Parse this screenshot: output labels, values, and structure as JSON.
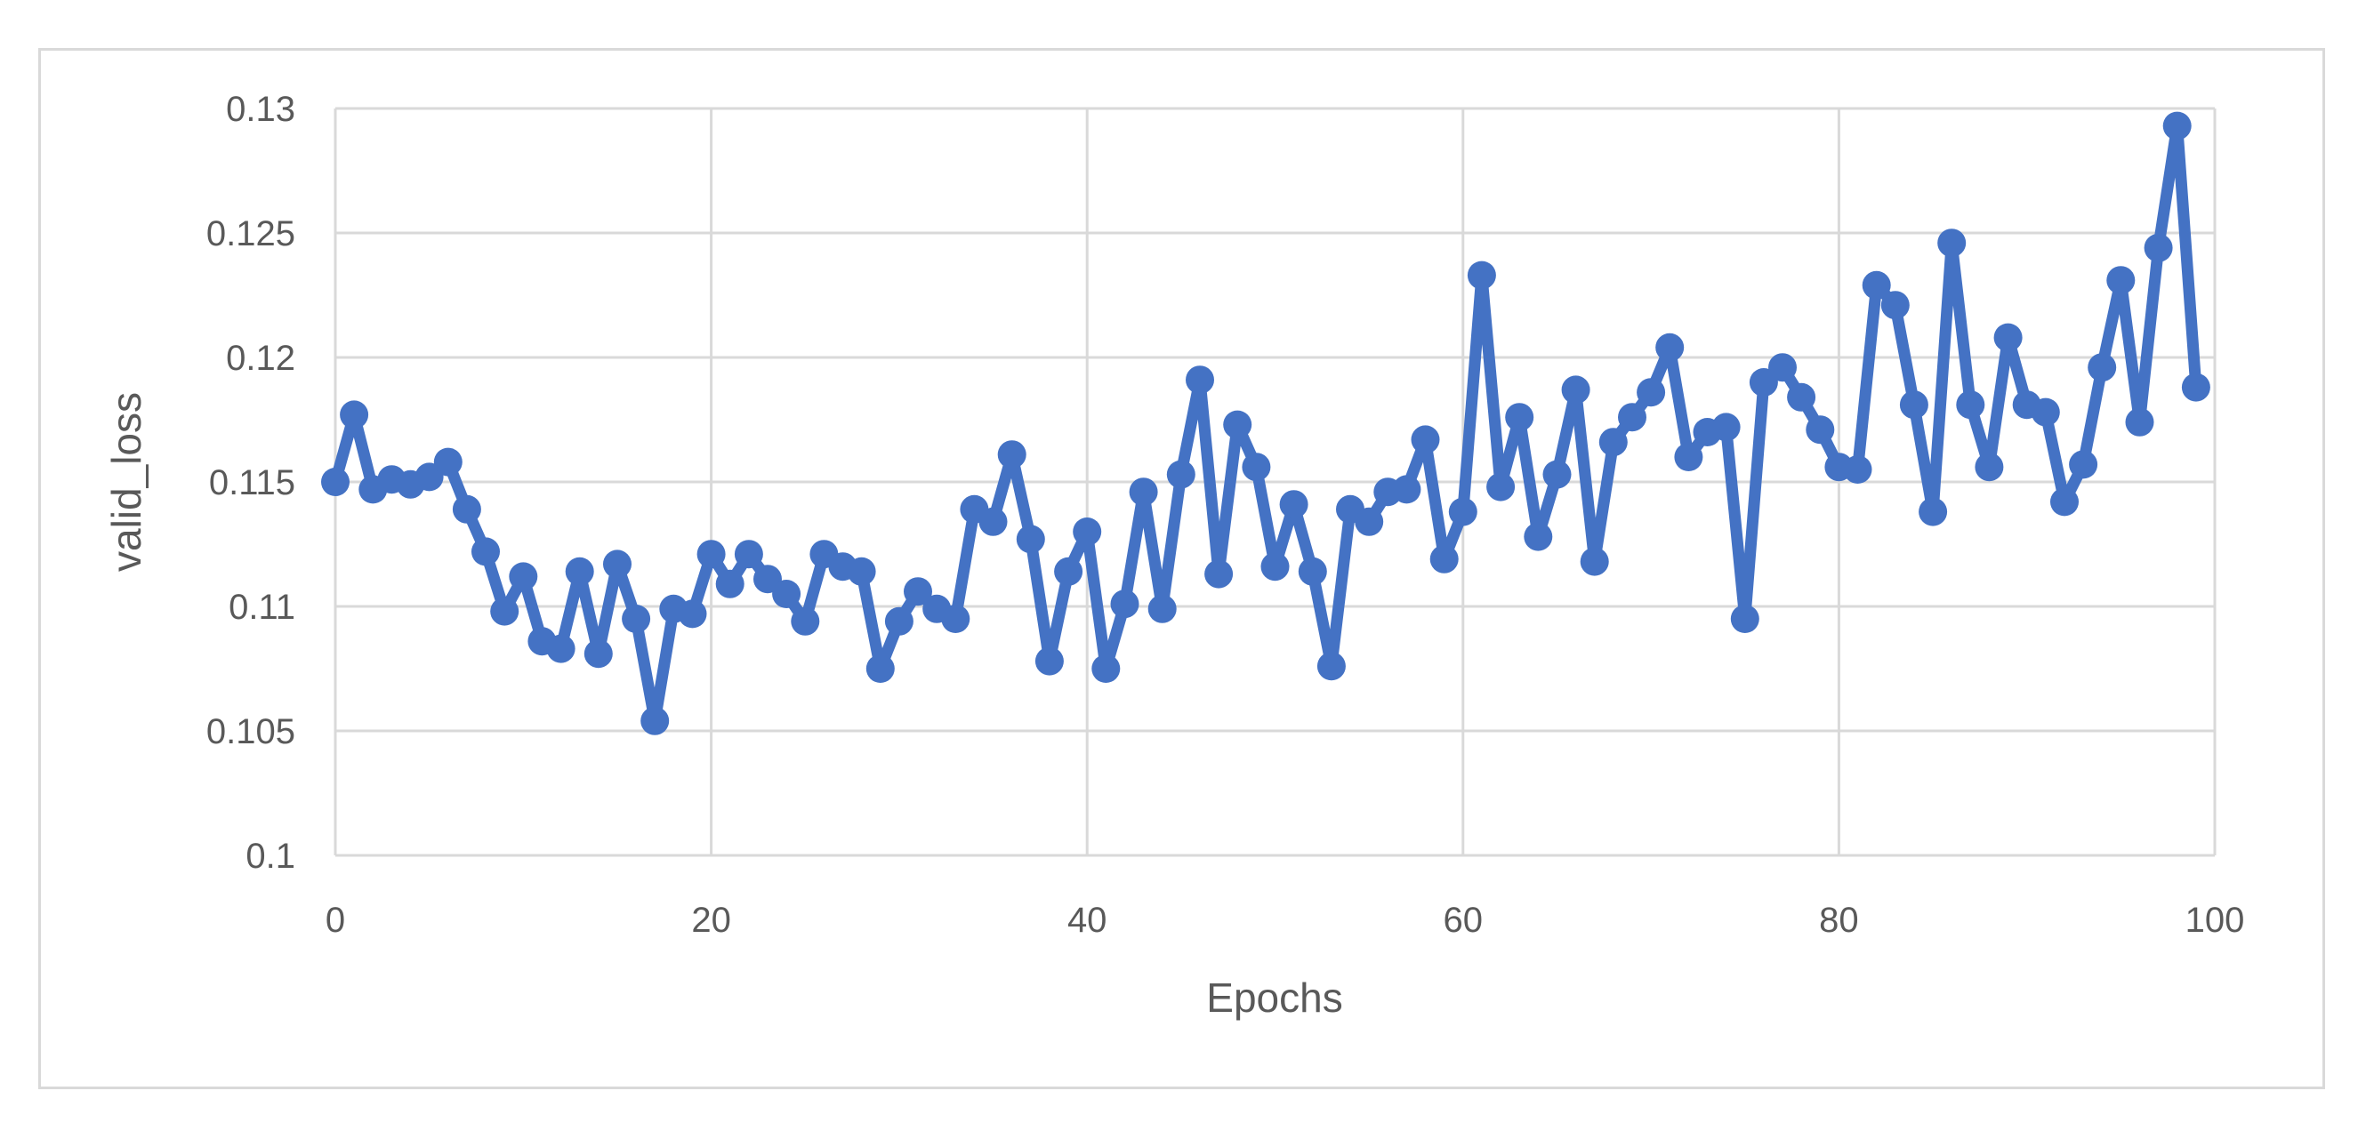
{
  "chart_data": {
    "type": "line",
    "title": "",
    "xlabel": "Epochs",
    "ylabel": "valid_loss",
    "legend": "none",
    "grid": true,
    "xlim": [
      0,
      100
    ],
    "ylim": [
      0.1,
      0.13
    ],
    "x_ticks": [
      0,
      20,
      40,
      60,
      80,
      100
    ],
    "x_tick_labels": [
      "0",
      "20",
      "40",
      "60",
      "80",
      "100"
    ],
    "y_ticks": [
      0.1,
      0.105,
      0.11,
      0.115,
      0.12,
      0.125,
      0.13
    ],
    "y_tick_labels": [
      "0.1",
      "0.105",
      "0.11",
      "0.115",
      "0.12",
      "0.125",
      "0.13"
    ],
    "x": [
      0,
      1,
      2,
      3,
      4,
      5,
      6,
      7,
      8,
      9,
      10,
      11,
      12,
      13,
      14,
      15,
      16,
      17,
      18,
      19,
      20,
      21,
      22,
      23,
      24,
      25,
      26,
      27,
      28,
      29,
      30,
      31,
      32,
      33,
      34,
      35,
      36,
      37,
      38,
      39,
      40,
      41,
      42,
      43,
      44,
      45,
      46,
      47,
      48,
      49,
      50,
      51,
      52,
      53,
      54,
      55,
      56,
      57,
      58,
      59,
      60,
      61,
      62,
      63,
      64,
      65,
      66,
      67,
      68,
      69,
      70,
      71,
      72,
      73,
      74,
      75,
      76,
      77,
      78,
      79,
      80,
      81,
      82,
      83,
      84,
      85,
      86,
      87,
      88,
      89,
      90,
      91,
      92,
      93,
      94,
      95,
      96,
      97,
      98,
      99
    ],
    "series": [
      {
        "name": "valid_loss",
        "values": [
          0.115,
          0.1177,
          0.1147,
          0.1151,
          0.1149,
          0.1152,
          0.1158,
          0.1139,
          0.1122,
          0.1098,
          0.1112,
          0.1086,
          0.1083,
          0.1114,
          0.1081,
          0.1117,
          0.1095,
          0.1054,
          0.1099,
          0.1097,
          0.1121,
          0.1109,
          0.1121,
          0.1111,
          0.1105,
          0.1094,
          0.1121,
          0.1116,
          0.1114,
          0.1075,
          0.1094,
          0.1106,
          0.1099,
          0.1095,
          0.1139,
          0.1134,
          0.1161,
          0.1127,
          0.1078,
          0.1114,
          0.113,
          0.1075,
          0.1101,
          0.1146,
          0.1099,
          0.1153,
          0.1191,
          0.1113,
          0.1173,
          0.1156,
          0.1116,
          0.1141,
          0.1114,
          0.1076,
          0.1139,
          0.1134,
          0.1146,
          0.1147,
          0.1167,
          0.1119,
          0.1138,
          0.1233,
          0.1148,
          0.1176,
          0.1128,
          0.1153,
          0.1187,
          0.1118,
          0.1166,
          0.1176,
          0.1186,
          0.1204,
          0.116,
          0.117,
          0.1172,
          0.1095,
          0.119,
          0.1196,
          0.1184,
          0.1171,
          0.1156,
          0.1155,
          0.1229,
          0.1221,
          0.1181,
          0.1138,
          0.1246,
          0.1181,
          0.1156,
          0.1208,
          0.1181,
          0.1178,
          0.1142,
          0.1157,
          0.1196,
          0.1231,
          0.1174,
          0.1244,
          0.1293,
          0.1188
        ]
      }
    ],
    "line_color": "#4472C4",
    "marker": "circle"
  },
  "colors": {
    "series_blue": "#4472C4",
    "gridline": "#D9D9D9",
    "axis_line": "#D9D9D9",
    "chart_border": "#D9D9D9",
    "text": "#595959",
    "background": "#FFFFFF"
  }
}
